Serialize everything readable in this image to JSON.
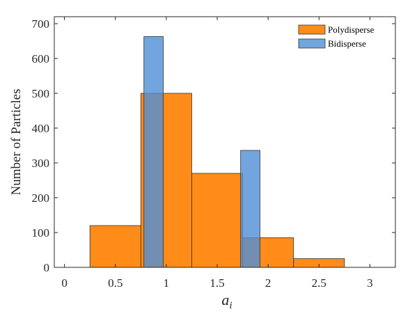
{
  "chart_data": {
    "type": "histogram",
    "title": "",
    "xlabel": "a",
    "xlabel_subscript": "i",
    "ylabel": "Number of Particles",
    "xlim": [
      -0.1,
      3.25
    ],
    "ylim": [
      0,
      720
    ],
    "xticks": [
      0,
      0.5,
      1,
      1.5,
      2,
      2.5,
      3
    ],
    "xtick_labels": [
      "0",
      "0.5",
      "1",
      "1.5",
      "2",
      "2.5",
      "3"
    ],
    "yticks": [
      0,
      100,
      200,
      300,
      400,
      500,
      600,
      700
    ],
    "ytick_labels": [
      "0",
      "100",
      "200",
      "300",
      "400",
      "500",
      "600",
      "700"
    ],
    "grid": false,
    "legend_position": "top-right",
    "series": [
      {
        "name": "Polydisperse",
        "color": "#ff7f00",
        "opacity": 0.9,
        "bins": [
          {
            "x0": 0.25,
            "x1": 0.75,
            "value": 120
          },
          {
            "x0": 0.75,
            "x1": 1.25,
            "value": 500
          },
          {
            "x0": 1.25,
            "x1": 1.75,
            "value": 270
          },
          {
            "x0": 1.75,
            "x1": 2.25,
            "value": 85
          },
          {
            "x0": 2.25,
            "x1": 2.75,
            "value": 25
          }
        ]
      },
      {
        "name": "Bidisperse",
        "color": "#4f8fd6",
        "opacity": 0.8,
        "bins": [
          {
            "x0": 0.78,
            "x1": 0.97,
            "value": 663
          },
          {
            "x0": 1.73,
            "x1": 1.92,
            "value": 336
          }
        ]
      }
    ]
  }
}
